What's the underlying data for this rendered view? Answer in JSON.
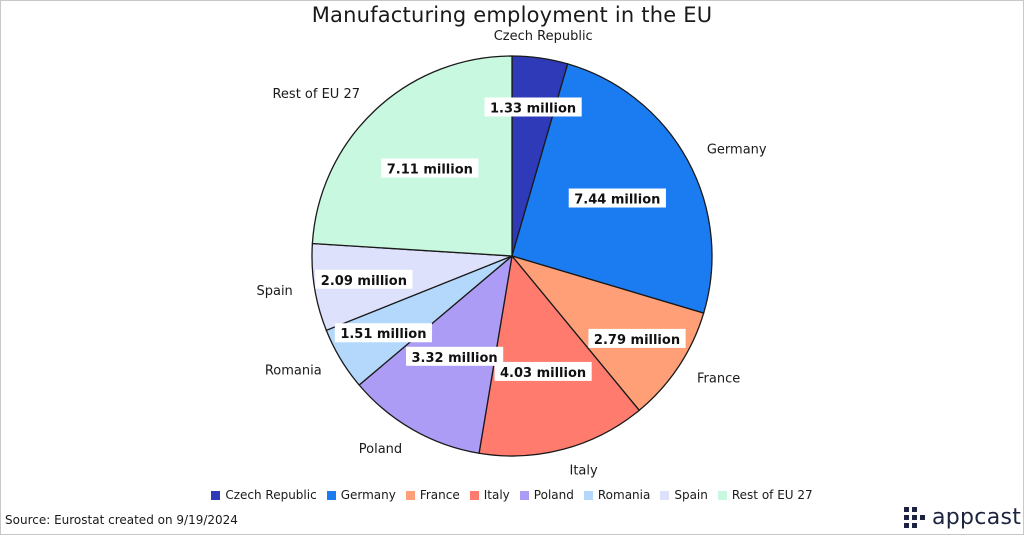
{
  "chart_data": {
    "type": "pie",
    "title": "Manufacturing employment in the EU",
    "unit": "million",
    "categories": [
      "Czech Republic",
      "Germany",
      "France",
      "Italy",
      "Poland",
      "Romania",
      "Spain",
      "Rest of EU 27"
    ],
    "values": [
      1.33,
      7.44,
      2.79,
      4.03,
      3.32,
      1.51,
      2.09,
      7.11
    ],
    "value_labels": [
      "1.33 million",
      "7.44 million",
      "2.79 million",
      "4.03 million",
      "3.32 million",
      "1.51 million",
      "2.09 million",
      "7.11 million"
    ],
    "colors": [
      "#2f3ab8",
      "#1b7cf2",
      "#ff9f78",
      "#ff7b6e",
      "#ad9cf5",
      "#b4d8fb",
      "#dde1fb",
      "#c8f8e0"
    ],
    "legend_position": "bottom"
  },
  "footer": {
    "source": "Source: Eurostat created on 9/19/2024",
    "logo_text": "appcast"
  }
}
